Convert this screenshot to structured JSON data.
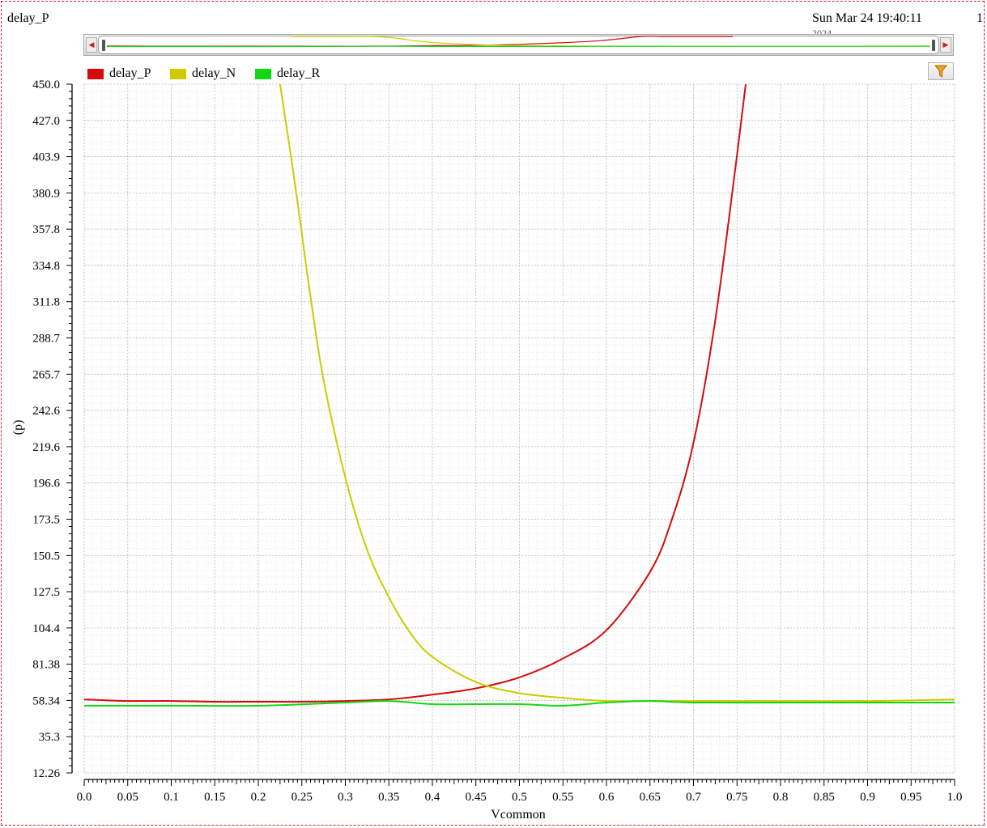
{
  "header": {
    "title": "delay_P",
    "timestamp": "Sun Mar 24 19:40:11",
    "timestamp_extra": "1",
    "timestamp_cut": "2024"
  },
  "toolbar": {
    "left_arrow_icon": "triangle-left-icon",
    "right_arrow_icon": "triangle-right-icon",
    "filter_icon": "funnel-icon"
  },
  "legend": [
    {
      "label": "delay_P",
      "color": "#d50b0b"
    },
    {
      "label": "delay_N",
      "color": "#cccc00"
    },
    {
      "label": "delay_R",
      "color": "#12d812"
    }
  ],
  "chart_data": {
    "type": "line",
    "title": "",
    "xlabel": "Vcommon",
    "ylabel": "(p)",
    "xlim": [
      0.0,
      1.0
    ],
    "ylim": [
      12.26,
      450.0
    ],
    "grid": true,
    "legend_position": "top-left",
    "x_ticks": [
      "0.0",
      "0.05",
      "0.1",
      "0.15",
      "0.2",
      "0.25",
      "0.3",
      "0.35",
      "0.4",
      "0.45",
      "0.5",
      "0.55",
      "0.6",
      "0.65",
      "0.7",
      "0.75",
      "0.8",
      "0.85",
      "0.9",
      "0.95",
      "1.0"
    ],
    "y_ticks": [
      "450.0",
      "427.0",
      "403.9",
      "380.9",
      "357.8",
      "334.8",
      "311.8",
      "288.7",
      "265.7",
      "242.6",
      "219.6",
      "196.6",
      "173.5",
      "150.5",
      "127.5",
      "104.4",
      "81.38",
      "58.34",
      "35.3",
      "12.26"
    ],
    "series": [
      {
        "name": "delay_P",
        "color": "#d50b0b",
        "x": [
          0.0,
          0.05,
          0.1,
          0.15,
          0.2,
          0.25,
          0.3,
          0.35,
          0.4,
          0.45,
          0.5,
          0.55,
          0.6,
          0.65,
          0.675,
          0.7,
          0.725,
          0.75,
          0.76
        ],
        "y": [
          59,
          58,
          58,
          57.5,
          57.5,
          57.5,
          58,
          59,
          62,
          66,
          73,
          85,
          103,
          140,
          173,
          222,
          300,
          405,
          450
        ]
      },
      {
        "name": "delay_N",
        "color": "#cccc00",
        "x": [
          0.225,
          0.24,
          0.25,
          0.26,
          0.275,
          0.3,
          0.325,
          0.35,
          0.375,
          0.4,
          0.45,
          0.5,
          0.55,
          0.6,
          0.65,
          0.7,
          0.8,
          0.9,
          1.0
        ],
        "y": [
          450,
          395,
          355,
          315,
          262,
          200,
          154,
          124,
          101,
          86,
          70,
          63,
          60,
          58,
          58,
          58,
          58,
          58,
          59
        ]
      },
      {
        "name": "delay_R",
        "color": "#12d812",
        "x": [
          0.0,
          0.1,
          0.2,
          0.3,
          0.35,
          0.4,
          0.45,
          0.5,
          0.55,
          0.6,
          0.65,
          0.7,
          0.8,
          0.9,
          1.0
        ],
        "y": [
          55,
          55,
          55,
          57,
          58,
          56,
          56,
          56,
          55,
          57,
          58,
          57,
          57,
          57,
          57
        ]
      }
    ]
  }
}
